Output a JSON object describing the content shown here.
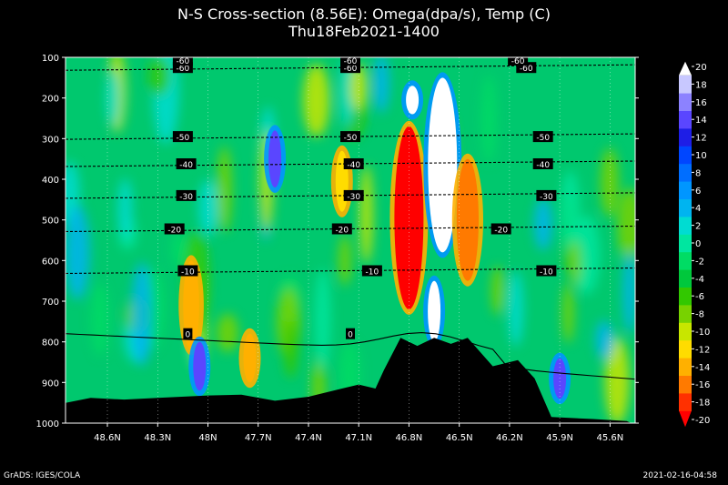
{
  "title": "N-S Cross-section (8.56E): Omega(dpa/s), Temp (C)",
  "subtitle": "Thu18Feb2021-1400",
  "footer_left": "GrADS: IGES/COLA",
  "footer_right": "2021-02-16-04:58",
  "chart_data": {
    "type": "heatmap",
    "title": "N-S Cross-section (8.56E): Omega(dpa/s), Temp (C)",
    "subtitle": "Thu18Feb2021-1400",
    "x_ticks": [
      "48.6N",
      "48.3N",
      "48N",
      "47.7N",
      "47.4N",
      "47.1N",
      "46.8N",
      "46.5N",
      "46.2N",
      "45.9N",
      "45.6N"
    ],
    "xlim": [
      48.85,
      45.45
    ],
    "y_ticks": [
      100,
      200,
      300,
      400,
      500,
      600,
      700,
      800,
      900,
      1000
    ],
    "ylim": [
      1000,
      100
    ],
    "colorbar": {
      "levels": [
        -20,
        -18,
        -16,
        -14,
        -12,
        -10,
        -8,
        -6,
        -4,
        -2,
        0,
        2,
        4,
        6,
        8,
        10,
        12,
        14,
        16,
        18,
        20
      ],
      "colors": [
        "#ff0000",
        "#ff3000",
        "#ff7a00",
        "#ffb000",
        "#ffdc00",
        "#c8e600",
        "#78d200",
        "#32c800",
        "#00c83c",
        "#00dc64",
        "#00e6a0",
        "#00dcd2",
        "#00b4f0",
        "#0096ff",
        "#006eff",
        "#0046ff",
        "#1e1ee6",
        "#5a46ff",
        "#8c82ff",
        "#c8c8ff",
        "#ffffff"
      ]
    },
    "omega_features": [
      {
        "lat": 46.8,
        "p_top": 270,
        "p_bottom": 720,
        "value": -20
      },
      {
        "lat": 46.6,
        "p_top": 150,
        "p_bottom": 580,
        "value": 20
      },
      {
        "lat": 46.65,
        "p_top": 650,
        "p_bottom": 800,
        "value": 20
      },
      {
        "lat": 46.78,
        "p_top": 170,
        "p_bottom": 240,
        "value": 20
      },
      {
        "lat": 46.45,
        "p_top": 350,
        "p_bottom": 650,
        "value": -16
      },
      {
        "lat": 47.6,
        "p_top": 280,
        "p_bottom": 420,
        "value": 14
      },
      {
        "lat": 48.1,
        "p_top": 600,
        "p_bottom": 820,
        "value": -14
      },
      {
        "lat": 48.05,
        "p_top": 800,
        "p_bottom": 920,
        "value": 14
      },
      {
        "lat": 47.75,
        "p_top": 780,
        "p_bottom": 900,
        "value": -14
      },
      {
        "lat": 47.2,
        "p_top": 330,
        "p_bottom": 480,
        "value": -12
      },
      {
        "lat": 45.9,
        "p_top": 840,
        "p_bottom": 940,
        "value": 14
      }
    ],
    "temperature_contours": [
      {
        "label": "-60",
        "p": 125,
        "label_lats": [
          48.15,
          47.15,
          46.1
        ]
      },
      {
        "label": "-50",
        "p": 295,
        "label_lats": [
          48.15,
          47.15,
          46.0
        ]
      },
      {
        "label": "-40",
        "p": 362,
        "label_lats": [
          48.13,
          47.13,
          46.0
        ]
      },
      {
        "label": "-30",
        "p": 440,
        "label_lats": [
          48.13,
          47.13,
          45.98
        ]
      },
      {
        "label": "-20",
        "p": 522,
        "label_lats": [
          48.2,
          47.2,
          46.25
        ]
      },
      {
        "label": "-10",
        "p": 625,
        "label_lats": [
          48.12,
          47.02,
          45.98
        ]
      },
      {
        "label": "0",
        "p": 780,
        "label_lats": [
          48.12,
          47.15
        ]
      }
    ],
    "top_labels": [
      {
        "label": "-60",
        "lat": 48.15
      },
      {
        "label": "-60",
        "lat": 47.15
      },
      {
        "label": "-60",
        "lat": 46.15
      }
    ],
    "terrain_profile": [
      {
        "lat": 48.85,
        "p": 950
      },
      {
        "lat": 48.7,
        "p": 938
      },
      {
        "lat": 48.5,
        "p": 942
      },
      {
        "lat": 48.3,
        "p": 938
      },
      {
        "lat": 48.0,
        "p": 932
      },
      {
        "lat": 47.8,
        "p": 930
      },
      {
        "lat": 47.6,
        "p": 945
      },
      {
        "lat": 47.4,
        "p": 935
      },
      {
        "lat": 47.2,
        "p": 915
      },
      {
        "lat": 47.1,
        "p": 905
      },
      {
        "lat": 47.0,
        "p": 915
      },
      {
        "lat": 46.95,
        "p": 870
      },
      {
        "lat": 46.85,
        "p": 790
      },
      {
        "lat": 46.75,
        "p": 810
      },
      {
        "lat": 46.65,
        "p": 790
      },
      {
        "lat": 46.55,
        "p": 805
      },
      {
        "lat": 46.45,
        "p": 790
      },
      {
        "lat": 46.3,
        "p": 860
      },
      {
        "lat": 46.15,
        "p": 845
      },
      {
        "lat": 46.05,
        "p": 890
      },
      {
        "lat": 45.95,
        "p": 985
      },
      {
        "lat": 45.7,
        "p": 990
      },
      {
        "lat": 45.5,
        "p": 995
      }
    ]
  }
}
